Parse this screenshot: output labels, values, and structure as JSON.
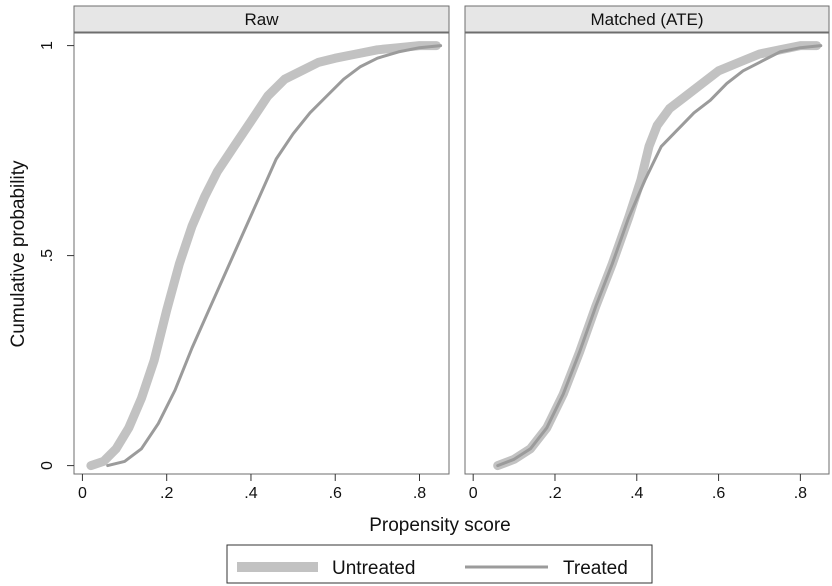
{
  "colors": {
    "untreated": "#c2c2c2",
    "treated": "#9b9b9b",
    "strip": "#e6e6e6",
    "frame": "#6e6e6e"
  },
  "chart_data": {
    "type": "line",
    "xlabel": "Propensity score",
    "ylabel": "Cumulative probability",
    "legend": {
      "placement": "bottom",
      "entries": [
        {
          "label": "Untreated",
          "style": "thick"
        },
        {
          "label": "Treated",
          "style": "thin"
        }
      ]
    },
    "panels": [
      {
        "title": "Raw",
        "xlim": [
          -0.02,
          0.87
        ],
        "ylim": [
          -0.02,
          1.03
        ],
        "xticks": [
          {
            "v": 0,
            "label": "0"
          },
          {
            "v": 0.2,
            "label": ".2"
          },
          {
            "v": 0.4,
            "label": ".4"
          },
          {
            "v": 0.6,
            "label": ".6"
          },
          {
            "v": 0.8,
            "label": ".8"
          }
        ],
        "yticks": [
          {
            "v": 0,
            "label": "0"
          },
          {
            "v": 0.5,
            "label": ".5"
          },
          {
            "v": 1,
            "label": "1"
          }
        ],
        "series": [
          {
            "name": "Untreated",
            "style": "thick",
            "x": [
              0.02,
              0.05,
              0.08,
              0.11,
              0.14,
              0.17,
              0.2,
              0.23,
              0.26,
              0.29,
              0.32,
              0.36,
              0.4,
              0.44,
              0.48,
              0.52,
              0.56,
              0.6,
              0.65,
              0.7,
              0.75,
              0.8,
              0.84
            ],
            "y": [
              0.0,
              0.01,
              0.04,
              0.09,
              0.16,
              0.25,
              0.37,
              0.48,
              0.57,
              0.64,
              0.7,
              0.76,
              0.82,
              0.88,
              0.92,
              0.94,
              0.96,
              0.97,
              0.98,
              0.99,
              0.995,
              1.0,
              1.0
            ]
          },
          {
            "name": "Treated",
            "style": "thin",
            "x": [
              0.06,
              0.1,
              0.14,
              0.18,
              0.22,
              0.26,
              0.3,
              0.34,
              0.38,
              0.42,
              0.46,
              0.5,
              0.54,
              0.58,
              0.62,
              0.66,
              0.7,
              0.75,
              0.8,
              0.85
            ],
            "y": [
              0.0,
              0.01,
              0.04,
              0.1,
              0.18,
              0.28,
              0.37,
              0.46,
              0.55,
              0.64,
              0.73,
              0.79,
              0.84,
              0.88,
              0.92,
              0.95,
              0.97,
              0.985,
              0.995,
              1.0
            ]
          }
        ]
      },
      {
        "title": "Matched (ATE)",
        "xlim": [
          -0.02,
          0.87
        ],
        "ylim": [
          -0.02,
          1.03
        ],
        "xticks": [
          {
            "v": 0,
            "label": "0"
          },
          {
            "v": 0.2,
            "label": ".2"
          },
          {
            "v": 0.4,
            "label": ".4"
          },
          {
            "v": 0.6,
            "label": ".6"
          },
          {
            "v": 0.8,
            "label": ".8"
          }
        ],
        "yticks": [],
        "series": [
          {
            "name": "Untreated",
            "style": "thick",
            "x": [
              0.06,
              0.1,
              0.14,
              0.18,
              0.22,
              0.26,
              0.3,
              0.34,
              0.38,
              0.41,
              0.43,
              0.45,
              0.48,
              0.52,
              0.56,
              0.6,
              0.65,
              0.7,
              0.75,
              0.8,
              0.84
            ],
            "y": [
              0.0,
              0.015,
              0.04,
              0.09,
              0.17,
              0.27,
              0.38,
              0.48,
              0.59,
              0.68,
              0.76,
              0.81,
              0.85,
              0.88,
              0.91,
              0.94,
              0.96,
              0.98,
              0.99,
              1.0,
              1.0
            ]
          },
          {
            "name": "Treated",
            "style": "thin",
            "x": [
              0.06,
              0.1,
              0.14,
              0.18,
              0.22,
              0.26,
              0.3,
              0.34,
              0.38,
              0.42,
              0.44,
              0.46,
              0.5,
              0.54,
              0.58,
              0.62,
              0.66,
              0.7,
              0.75,
              0.8,
              0.85
            ],
            "y": [
              0.0,
              0.015,
              0.04,
              0.09,
              0.17,
              0.27,
              0.38,
              0.48,
              0.59,
              0.68,
              0.72,
              0.76,
              0.8,
              0.84,
              0.87,
              0.91,
              0.94,
              0.96,
              0.985,
              0.995,
              1.0
            ]
          }
        ]
      }
    ]
  }
}
